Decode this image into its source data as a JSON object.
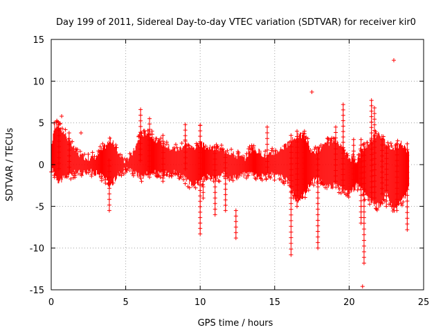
{
  "chart_data": {
    "type": "scatter",
    "title": "Day 199 of 2011, Sidereal Day-to-day VTEC variation (SDTVAR) for receiver kir0",
    "xlabel": "GPS time / hours",
    "ylabel": "SDTVAR / TECUs",
    "xlim": [
      0,
      25
    ],
    "ylim": [
      -15,
      15
    ],
    "xticks": [
      0,
      5,
      10,
      15,
      20,
      25
    ],
    "yticks": [
      -15,
      -10,
      -5,
      0,
      5,
      10,
      15
    ],
    "grid": true,
    "marker": "+",
    "color": "#ff0000",
    "band": {
      "note": "Dense data envelope approximating the plotted point cloud (GPS hour, min TECU, max TECU)",
      "x": [
        0,
        0.2,
        0.5,
        1.0,
        1.5,
        2.0,
        2.5,
        3.0,
        3.5,
        4.0,
        4.5,
        5.0,
        5.5,
        6.0,
        6.5,
        7.0,
        7.5,
        8.0,
        8.5,
        9.0,
        9.5,
        10.0,
        10.5,
        11.0,
        11.5,
        12.0,
        12.5,
        13.0,
        13.5,
        14.0,
        14.5,
        15.0,
        15.5,
        16.0,
        16.5,
        17.0,
        17.5,
        18.0,
        18.5,
        19.0,
        19.5,
        20.0,
        20.5,
        21.0,
        21.5,
        22.0,
        22.5,
        23.0,
        23.5,
        24.0
      ],
      "low": [
        -0.5,
        -1.0,
        -2.0,
        -1.5,
        -1.0,
        -1.0,
        -0.8,
        -1.0,
        -1.5,
        -2.5,
        -1.2,
        -0.5,
        -0.8,
        -1.5,
        -1.0,
        -1.0,
        -1.3,
        -0.8,
        -1.0,
        -1.8,
        -2.5,
        -2.0,
        -1.5,
        -1.8,
        -1.2,
        -1.5,
        -1.5,
        -1.2,
        -1.0,
        -1.5,
        -1.2,
        -1.3,
        -1.5,
        -2.2,
        -4.5,
        -3.5,
        -2.0,
        -1.8,
        -2.8,
        -2.5,
        -3.0,
        -3.5,
        -2.5,
        -3.5,
        -4.5,
        -5.0,
        -3.5,
        -5.5,
        -4.5,
        -3.0
      ],
      "high": [
        2.0,
        4.5,
        4.8,
        3.5,
        2.0,
        1.0,
        0.8,
        1.0,
        2.0,
        3.0,
        1.5,
        0.3,
        1.5,
        3.5,
        4.0,
        3.0,
        2.5,
        2.0,
        1.8,
        2.5,
        2.0,
        2.5,
        2.0,
        2.0,
        1.8,
        1.5,
        1.0,
        0.8,
        2.0,
        1.5,
        1.0,
        1.5,
        2.0,
        2.5,
        3.5,
        3.5,
        1.5,
        1.8,
        2.5,
        3.0,
        2.0,
        0.8,
        0.5,
        2.0,
        3.0,
        4.0,
        2.5,
        2.0,
        2.5,
        1.5
      ]
    },
    "spikes": {
      "note": "Vertical excursions visible as stacked markers",
      "x": [
        0.5,
        1.2,
        3.9,
        6.0,
        6.6,
        7.5,
        9.0,
        10.0,
        10.2,
        11.0,
        11.7,
        12.4,
        14.5,
        16.1,
        16.5,
        17.0,
        17.9,
        19.1,
        19.6,
        20.3,
        20.8,
        21.0,
        21.5,
        21.7,
        22.2,
        22.5,
        23.2,
        23.9
      ],
      "low": [
        -0.5,
        -1.0,
        -5.5,
        0.5,
        -1.5,
        -2.0,
        -0.5,
        -8.3,
        -4.0,
        -6.0,
        -5.5,
        -8.8,
        -1.0,
        -10.8,
        -5.0,
        -3.0,
        -10.0,
        -2.0,
        -2.5,
        -2.5,
        -7.0,
        -11.8,
        -4.0,
        -4.0,
        -3.5,
        -5.0,
        -5.5,
        -7.8
      ],
      "high": [
        4.8,
        3.8,
        0.5,
        6.6,
        5.5,
        3.5,
        4.8,
        4.7,
        2.0,
        2.0,
        1.5,
        -5.5,
        4.5,
        3.5,
        4.0,
        4.0,
        2.0,
        4.5,
        7.2,
        3.0,
        3.0,
        2.5,
        7.7,
        6.8,
        3.0,
        2.0,
        2.5,
        2.5
      ]
    },
    "outliers": {
      "x": [
        0.7,
        2.0,
        10.0,
        17.5,
        23.0,
        20.9
      ],
      "y": [
        5.8,
        3.8,
        4.7,
        8.7,
        12.5,
        -14.6
      ]
    }
  }
}
